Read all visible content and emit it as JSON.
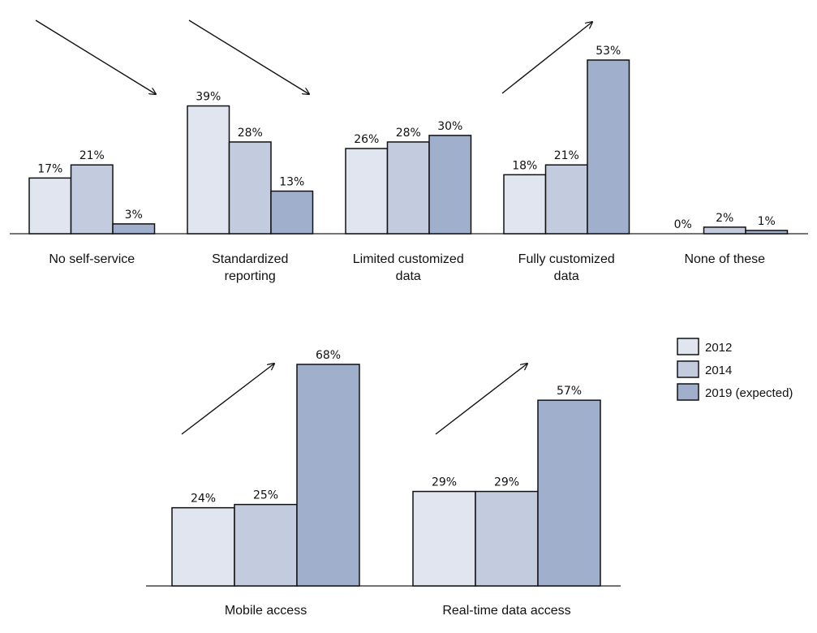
{
  "colors": {
    "2012": "#e1e5ef",
    "2014": "#c3cbdf",
    "2019 (expected)": "#9fafcc"
  },
  "chart_data": [
    {
      "type": "bar",
      "title": "",
      "categories": [
        [
          "No self-service"
        ],
        [
          "Standardized",
          "reporting"
        ],
        [
          "Limited customized",
          "data"
        ],
        [
          "Fully customized",
          "data"
        ],
        [
          "None of these"
        ]
      ],
      "series": [
        {
          "name": "2012",
          "values": [
            17,
            39,
            26,
            18,
            0
          ],
          "labels": [
            "17%",
            "39%",
            "26%",
            "18%",
            "0%"
          ]
        },
        {
          "name": "2014",
          "values": [
            21,
            28,
            28,
            21,
            2
          ],
          "labels": [
            "21%",
            "28%",
            "28%",
            "21%",
            "2%"
          ]
        },
        {
          "name": "2019 (expected)",
          "values": [
            3,
            13,
            30,
            53,
            1
          ],
          "labels": [
            "3%",
            "13%",
            "30%",
            "53%",
            "1%"
          ]
        }
      ],
      "ylim": [
        0,
        53
      ],
      "trend_arrows": [
        "down",
        "down",
        "none",
        "up",
        "none"
      ]
    },
    {
      "type": "bar",
      "title": "",
      "categories": [
        [
          "Mobile access"
        ],
        [
          "Real-time data access"
        ]
      ],
      "series": [
        {
          "name": "2012",
          "values": [
            24,
            29
          ],
          "labels": [
            "24%",
            "29%"
          ]
        },
        {
          "name": "2014",
          "values": [
            25,
            29
          ],
          "labels": [
            "25%",
            "29%"
          ]
        },
        {
          "name": "2019 (expected)",
          "values": [
            68,
            57
          ],
          "labels": [
            "68%",
            "57%"
          ]
        }
      ],
      "ylim": [
        0,
        68
      ],
      "trend_arrows": [
        "up",
        "up"
      ]
    }
  ],
  "legend": {
    "position": "right",
    "entries": [
      "2012",
      "2014",
      "2019 (expected)"
    ]
  }
}
